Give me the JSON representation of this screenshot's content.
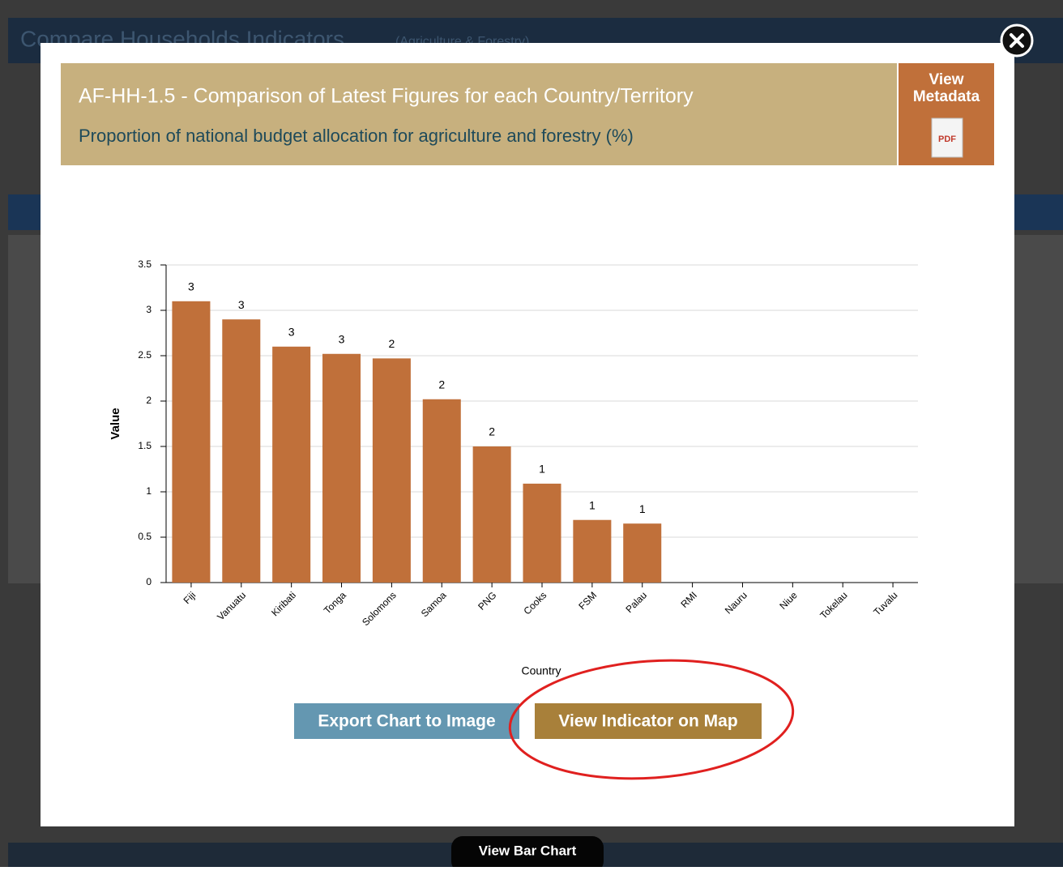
{
  "background": {
    "title": "Compare Households Indicators",
    "subtitle": "(Agriculture & Forestry)",
    "tab": "View Bar Chart"
  },
  "modal": {
    "heading": "AF-HH-1.5 - Comparison of Latest Figures for each Country/Territory",
    "subheading": "Proportion of national budget allocation for agriculture and forestry (%)",
    "metadata_button": "View Metadata",
    "pdf_icon": "PDF",
    "buttons": [
      "Export Chart to Image",
      "View Indicator on Map"
    ]
  },
  "chart_data": {
    "type": "bar",
    "x_label": "Country",
    "y_label": "Value",
    "categories": [
      "Fiji",
      "Vanuatu",
      "Kiribati",
      "Tonga",
      "Solomons",
      "Samoa",
      "PNG",
      "Cooks",
      "FSM",
      "Palau",
      "RMI",
      "Nauru",
      "Niue",
      "Tokelau",
      "Tuvalu"
    ],
    "values": [
      3.1,
      2.9,
      2.6,
      2.52,
      2.47,
      2.02,
      1.5,
      1.09,
      0.69,
      0.65,
      null,
      null,
      null,
      null,
      null
    ],
    "value_labels": [
      "3",
      "3",
      "3",
      "3",
      "2",
      "2",
      "2",
      "1",
      "1",
      "1",
      null,
      null,
      null,
      null,
      null
    ],
    "color": "#c0703a",
    "ylim": [
      0,
      3.5
    ],
    "yticks": [
      0,
      0.5,
      1,
      1.5,
      2,
      2.5,
      3,
      3.5
    ],
    "grid": true
  }
}
